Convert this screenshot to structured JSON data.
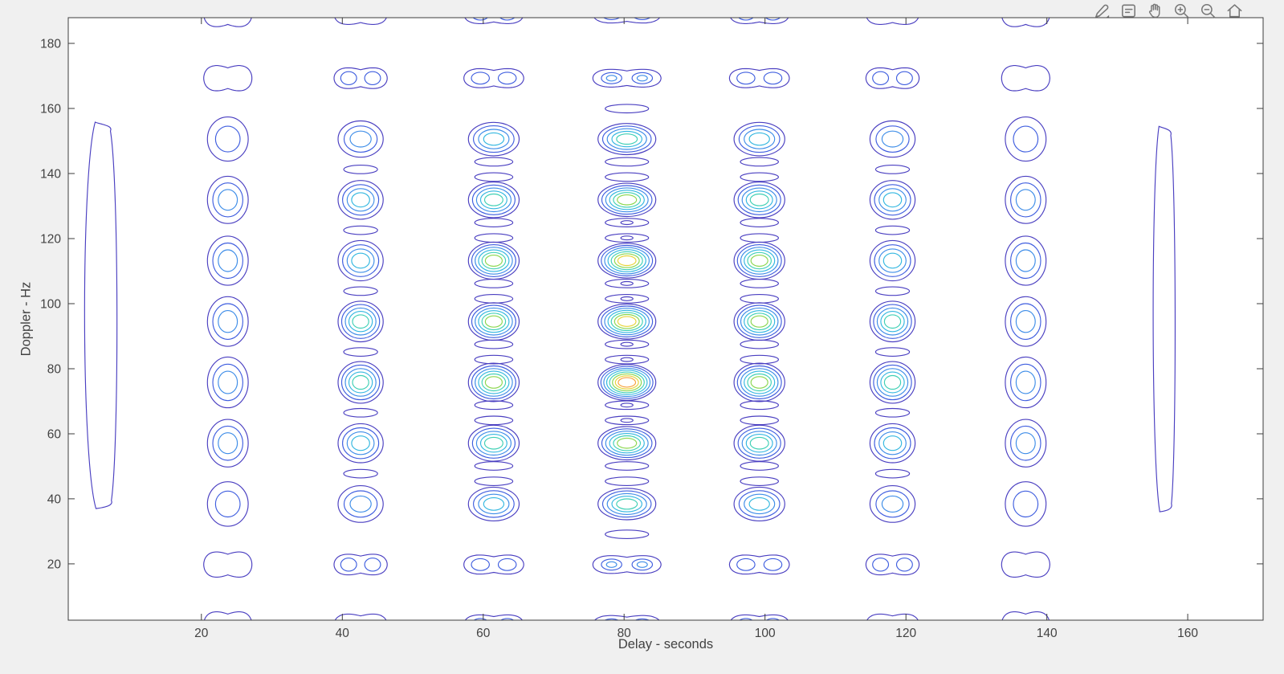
{
  "window": {
    "background": "#f0f0f0"
  },
  "toolbar": {
    "icon_color": "#777777",
    "buttons": [
      {
        "id": "brush",
        "label": "Brush / Select Data"
      },
      {
        "id": "datatips",
        "label": "Data Tips"
      },
      {
        "id": "pan",
        "label": "Pan"
      },
      {
        "id": "zoom-in",
        "label": "Zoom In"
      },
      {
        "id": "zoom-out",
        "label": "Zoom Out"
      },
      {
        "id": "restore-view",
        "label": "Restore View"
      }
    ]
  },
  "chart_data": {
    "type": "contour",
    "title": "",
    "xlabel": "Delay - seconds",
    "ylabel": "Doppler - Hz",
    "xlim": [
      1.1,
      170.7
    ],
    "ylim": [
      2.7,
      187.9
    ],
    "x_ticks": [
      20,
      40,
      60,
      80,
      100,
      120,
      140,
      160
    ],
    "y_ticks": [
      20,
      40,
      60,
      80,
      100,
      120,
      140,
      160,
      180
    ],
    "grid": false,
    "box": true,
    "tick_direction": "in",
    "axis_color": "#3b3b3b",
    "label_color": "#424242",
    "plot_background": "#ffffff",
    "contour_line_colors": [
      "#4a3fc1",
      "#3f5edf",
      "#3e8de8",
      "#33b7e0",
      "#3fd0b5",
      "#8bd74f",
      "#e7d439",
      "#f7a03b"
    ],
    "max_levels": 8,
    "lobe_grid": {
      "description": "Periodic ambiguity-function lobes: peak at delay 80.4 s, Doppler 75.8 Hz; intensity falls off toward edges. Second rows from top/bottom are double-lobed (peanut) shapes; edge rows are clipped by the axes box.",
      "delay_centers": [
        23.75,
        42.6,
        61.5,
        80.4,
        99.2,
        118.1,
        137.0
      ],
      "column_intensity": [
        0.42,
        0.62,
        0.8,
        1.0,
        0.8,
        0.62,
        0.42
      ],
      "column_rx": [
        2.9,
        3.2,
        3.6,
        4.1,
        3.6,
        3.2,
        2.9
      ],
      "column_ry": [
        7.8,
        6.4,
        5.9,
        5.5,
        5.9,
        6.4,
        7.8
      ],
      "doppler_centers": [
        1.4,
        19.8,
        38.4,
        57.1,
        75.8,
        94.5,
        113.2,
        131.9,
        150.6,
        169.3,
        189.0
      ],
      "row_intensity": [
        0.3,
        0.35,
        0.62,
        0.8,
        1.0,
        0.93,
        0.9,
        0.78,
        0.6,
        0.35,
        0.3
      ],
      "row_shape": [
        "peanut",
        "peanut",
        "lobe",
        "lobe",
        "lobe",
        "lobe",
        "lobe",
        "lobe",
        "lobe",
        "peanut",
        "peanut"
      ]
    },
    "sidelobes": {
      "ry": 1.3,
      "rx_factor": 0.75,
      "pair_offset": 2.35
    },
    "edge_ridges": [
      {
        "delay": 5.6,
        "half_width": 2.7,
        "doppler_span": [
          37.0,
          155.8
        ]
      },
      {
        "delay": 156.6,
        "half_width": 1.8,
        "doppler_span": [
          36.0,
          154.5
        ]
      }
    ]
  }
}
